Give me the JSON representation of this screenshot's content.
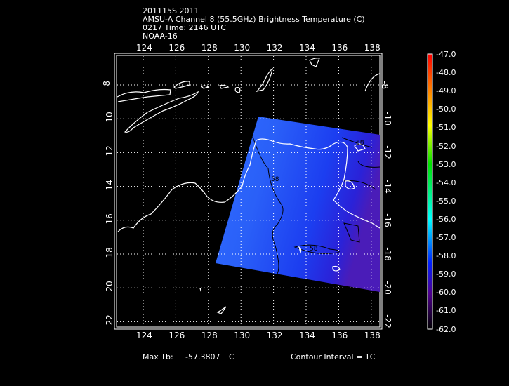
{
  "header": {
    "lines": [
      "201115S 2011",
      "AMSU-A Channel 8 (55.5GHz) Brightness Temperature (C)",
      "0217 Time: 2146 UTC",
      "NOAA-16"
    ]
  },
  "map": {
    "lon_ticks": [
      "124",
      "126",
      "128",
      "130",
      "132",
      "134",
      "136",
      "138"
    ],
    "lat_ticks": [
      "-8",
      "-10",
      "-12",
      "-14",
      "-16",
      "-18",
      "-20",
      "-22"
    ],
    "lon_range": [
      122.5,
      138.5
    ],
    "lat_range": [
      -6.3,
      -22.3
    ],
    "contour_labels": [
      "58",
      "58",
      "58"
    ],
    "swath_color": "#1a48f0",
    "coastline_color": "#ffffff",
    "grid": "dotted"
  },
  "colorbar": {
    "labels": [
      "-47.0",
      "-48.0",
      "-49.0",
      "-50.0",
      "-51.0",
      "-52.0",
      "-53.0",
      "-54.0",
      "-55.0",
      "-56.0",
      "-57.0",
      "-58.0",
      "-59.0",
      "-60.0",
      "-61.0",
      "-62.0"
    ],
    "colors": [
      "#ff0000",
      "#ff8000",
      "#ffff00",
      "#00e000",
      "#00ffff",
      "#0000ff",
      "#600090",
      "#000000"
    ]
  },
  "footer": {
    "max_tb_label": "Max Tb:",
    "max_tb_value": "-57.3807",
    "max_tb_unit": "C",
    "contour_interval": "Contour Interval = 1C"
  }
}
